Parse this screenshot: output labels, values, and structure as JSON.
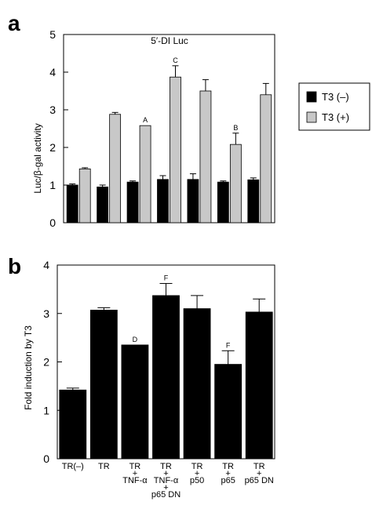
{
  "colors": {
    "t3_minus": "#000000",
    "t3_plus": "#c8c8c8",
    "panel_b": "#000000"
  },
  "chart_data": [
    {
      "panel": "a",
      "type": "bar",
      "title": "5′-DI Luc",
      "ylabel": "Luc/β-gal activity",
      "ylim": [
        0,
        5
      ],
      "yticks": [
        "0",
        "1",
        "2",
        "3",
        "4",
        "5"
      ],
      "legend": {
        "placement": "right",
        "entries": [
          "T3 (–)",
          "T3 (+)"
        ]
      },
      "series": [
        {
          "name": "T3 (–)",
          "values": [
            1.0,
            0.95,
            1.08,
            1.15,
            1.15,
            1.08,
            1.14
          ],
          "errors": [
            0.03,
            0.05,
            0.03,
            0.1,
            0.15,
            0.03,
            0.05
          ]
        },
        {
          "name": "T3 (+)",
          "values": [
            1.43,
            2.88,
            2.58,
            3.87,
            3.5,
            2.08,
            3.4
          ],
          "errors": [
            0.03,
            0.05,
            0.0,
            0.3,
            0.3,
            0.3,
            0.3
          ]
        }
      ],
      "annotations": [
        "",
        "",
        "A",
        "C",
        "",
        "B",
        ""
      ]
    },
    {
      "panel": "b",
      "type": "bar",
      "ylabel": "Fold induction by T3",
      "ylim": [
        0,
        4
      ],
      "yticks": [
        "0",
        "1",
        "2",
        "3",
        "4"
      ],
      "categories": [
        [
          "TR(–)"
        ],
        [
          "TR"
        ],
        [
          "TR",
          "+",
          "TNF-α"
        ],
        [
          "TR",
          "+",
          "TNF-α",
          "+",
          "p65 DN"
        ],
        [
          "TR",
          "+",
          "p50"
        ],
        [
          "TR",
          "+",
          "p65"
        ],
        [
          "TR",
          "+",
          "p65 DN"
        ]
      ],
      "values": [
        1.42,
        3.07,
        2.35,
        3.37,
        3.1,
        1.95,
        3.03
      ],
      "errors": [
        0.04,
        0.05,
        0.0,
        0.25,
        0.27,
        0.28,
        0.27
      ],
      "annotations": [
        "",
        "",
        "D",
        "F",
        "",
        "F",
        ""
      ]
    }
  ],
  "panel_labels": [
    "a",
    "b"
  ]
}
